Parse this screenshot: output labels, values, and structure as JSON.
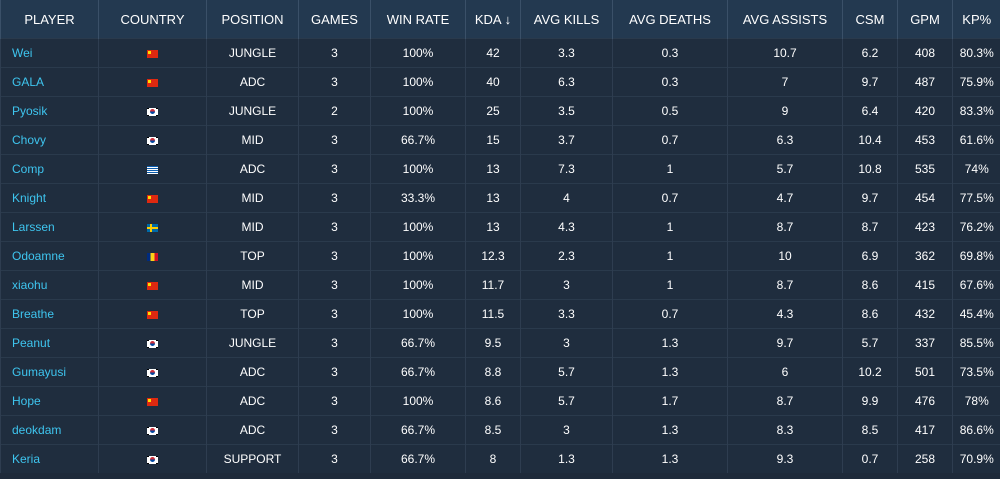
{
  "columns": {
    "player": "PLAYER",
    "country": "COUNTRY",
    "position": "POSITION",
    "games": "GAMES",
    "win_rate": "WIN RATE",
    "kda": "KDA",
    "kda_sort_icon": "↓",
    "avg_kills": "AVG KILLS",
    "avg_deaths": "AVG DEATHS",
    "avg_assists": "AVG ASSISTS",
    "csm": "CSM",
    "gpm": "GPM",
    "kp": "KP%"
  },
  "colors": {
    "header_bg": "#233950",
    "row_bg": "#1f2d3e",
    "player_link": "#3ec5ef",
    "text": "#ffffff"
  },
  "rows": [
    {
      "player": "Wei",
      "flag": "cn",
      "position": "JUNGLE",
      "games": "3",
      "win_rate": "100%",
      "kda": "42",
      "avg_kills": "3.3",
      "avg_deaths": "0.3",
      "avg_assists": "10.7",
      "csm": "6.2",
      "gpm": "408",
      "kp": "80.3%"
    },
    {
      "player": "GALA",
      "flag": "cn",
      "position": "ADC",
      "games": "3",
      "win_rate": "100%",
      "kda": "40",
      "avg_kills": "6.3",
      "avg_deaths": "0.3",
      "avg_assists": "7",
      "csm": "9.7",
      "gpm": "487",
      "kp": "75.9%"
    },
    {
      "player": "Pyosik",
      "flag": "kr",
      "position": "JUNGLE",
      "games": "2",
      "win_rate": "100%",
      "kda": "25",
      "avg_kills": "3.5",
      "avg_deaths": "0.5",
      "avg_assists": "9",
      "csm": "6.4",
      "gpm": "420",
      "kp": "83.3%"
    },
    {
      "player": "Chovy",
      "flag": "kr",
      "position": "MID",
      "games": "3",
      "win_rate": "66.7%",
      "kda": "15",
      "avg_kills": "3.7",
      "avg_deaths": "0.7",
      "avg_assists": "6.3",
      "csm": "10.4",
      "gpm": "453",
      "kp": "61.6%"
    },
    {
      "player": "Comp",
      "flag": "gr",
      "position": "ADC",
      "games": "3",
      "win_rate": "100%",
      "kda": "13",
      "avg_kills": "7.3",
      "avg_deaths": "1",
      "avg_assists": "5.7",
      "csm": "10.8",
      "gpm": "535",
      "kp": "74%"
    },
    {
      "player": "Knight",
      "flag": "cn",
      "position": "MID",
      "games": "3",
      "win_rate": "33.3%",
      "kda": "13",
      "avg_kills": "4",
      "avg_deaths": "0.7",
      "avg_assists": "4.7",
      "csm": "9.7",
      "gpm": "454",
      "kp": "77.5%"
    },
    {
      "player": "Larssen",
      "flag": "se",
      "position": "MID",
      "games": "3",
      "win_rate": "100%",
      "kda": "13",
      "avg_kills": "4.3",
      "avg_deaths": "1",
      "avg_assists": "8.7",
      "csm": "8.7",
      "gpm": "423",
      "kp": "76.2%"
    },
    {
      "player": "Odoamne",
      "flag": "ro",
      "position": "TOP",
      "games": "3",
      "win_rate": "100%",
      "kda": "12.3",
      "avg_kills": "2.3",
      "avg_deaths": "1",
      "avg_assists": "10",
      "csm": "6.9",
      "gpm": "362",
      "kp": "69.8%"
    },
    {
      "player": "xiaohu",
      "flag": "cn",
      "position": "MID",
      "games": "3",
      "win_rate": "100%",
      "kda": "11.7",
      "avg_kills": "3",
      "avg_deaths": "1",
      "avg_assists": "8.7",
      "csm": "8.6",
      "gpm": "415",
      "kp": "67.6%"
    },
    {
      "player": "Breathe",
      "flag": "cn",
      "position": "TOP",
      "games": "3",
      "win_rate": "100%",
      "kda": "11.5",
      "avg_kills": "3.3",
      "avg_deaths": "0.7",
      "avg_assists": "4.3",
      "csm": "8.6",
      "gpm": "432",
      "kp": "45.4%"
    },
    {
      "player": "Peanut",
      "flag": "kr",
      "position": "JUNGLE",
      "games": "3",
      "win_rate": "66.7%",
      "kda": "9.5",
      "avg_kills": "3",
      "avg_deaths": "1.3",
      "avg_assists": "9.7",
      "csm": "5.7",
      "gpm": "337",
      "kp": "85.5%"
    },
    {
      "player": "Gumayusi",
      "flag": "kr",
      "position": "ADC",
      "games": "3",
      "win_rate": "66.7%",
      "kda": "8.8",
      "avg_kills": "5.7",
      "avg_deaths": "1.3",
      "avg_assists": "6",
      "csm": "10.2",
      "gpm": "501",
      "kp": "73.5%"
    },
    {
      "player": "Hope",
      "flag": "cn",
      "position": "ADC",
      "games": "3",
      "win_rate": "100%",
      "kda": "8.6",
      "avg_kills": "5.7",
      "avg_deaths": "1.7",
      "avg_assists": "8.7",
      "csm": "9.9",
      "gpm": "476",
      "kp": "78%"
    },
    {
      "player": "deokdam",
      "flag": "kr",
      "position": "ADC",
      "games": "3",
      "win_rate": "66.7%",
      "kda": "8.5",
      "avg_kills": "3",
      "avg_deaths": "1.3",
      "avg_assists": "8.3",
      "csm": "8.5",
      "gpm": "417",
      "kp": "86.6%"
    },
    {
      "player": "Keria",
      "flag": "kr",
      "position": "SUPPORT",
      "games": "3",
      "win_rate": "66.7%",
      "kda": "8",
      "avg_kills": "1.3",
      "avg_deaths": "1.3",
      "avg_assists": "9.3",
      "csm": "0.7",
      "gpm": "258",
      "kp": "70.9%"
    }
  ]
}
